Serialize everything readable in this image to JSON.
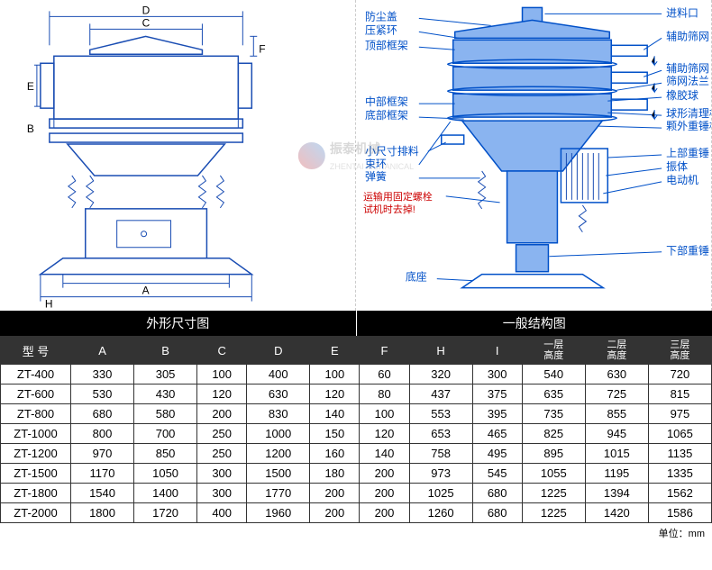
{
  "left_diagram": {
    "dim_labels": [
      "A",
      "B",
      "C",
      "D",
      "E",
      "F",
      "H"
    ],
    "title": "外形尺寸图"
  },
  "right_diagram": {
    "title": "一般结构图",
    "labels_left": [
      "防尘盖",
      "压紧环",
      "顶部框架",
      "中部框架",
      "底部框架",
      "小尺寸排料",
      "束环",
      "弹簧"
    ],
    "labels_left_red": [
      "运输用固定螺栓",
      "试机时去掉!"
    ],
    "labels_left_bottom": "底座",
    "labels_right": [
      "进料口",
      "辅助筛网",
      "辅助筛网",
      "筛网法兰",
      "橡胶球",
      "球形清理板",
      "颗外重锤板",
      "上部重锤",
      "振体",
      "电动机",
      "下部重锤"
    ]
  },
  "watermark": {
    "brand": "振泰机械",
    "sub": "ZHENTAI MCHANICAL"
  },
  "table": {
    "headers": [
      "型 号",
      "A",
      "B",
      "C",
      "D",
      "E",
      "F",
      "H",
      "I",
      "一层\n高度",
      "二层\n高度",
      "三层\n高度"
    ],
    "rows": [
      [
        "ZT-400",
        "330",
        "305",
        "100",
        "400",
        "100",
        "60",
        "320",
        "300",
        "540",
        "630",
        "720"
      ],
      [
        "ZT-600",
        "530",
        "430",
        "120",
        "630",
        "120",
        "80",
        "437",
        "375",
        "635",
        "725",
        "815"
      ],
      [
        "ZT-800",
        "680",
        "580",
        "200",
        "830",
        "140",
        "100",
        "553",
        "395",
        "735",
        "855",
        "975"
      ],
      [
        "ZT-1000",
        "800",
        "700",
        "250",
        "1000",
        "150",
        "120",
        "653",
        "465",
        "825",
        "945",
        "1065"
      ],
      [
        "ZT-1200",
        "970",
        "850",
        "250",
        "1200",
        "160",
        "140",
        "758",
        "495",
        "895",
        "1015",
        "1135"
      ],
      [
        "ZT-1500",
        "1170",
        "1050",
        "300",
        "1500",
        "180",
        "200",
        "973",
        "545",
        "1055",
        "1195",
        "1335"
      ],
      [
        "ZT-1800",
        "1540",
        "1400",
        "300",
        "1770",
        "200",
        "200",
        "1025",
        "680",
        "1225",
        "1394",
        "1562"
      ],
      [
        "ZT-2000",
        "1800",
        "1720",
        "400",
        "1960",
        "200",
        "200",
        "1260",
        "680",
        "1225",
        "1420",
        "1586"
      ]
    ],
    "unit": "单位：mm"
  }
}
